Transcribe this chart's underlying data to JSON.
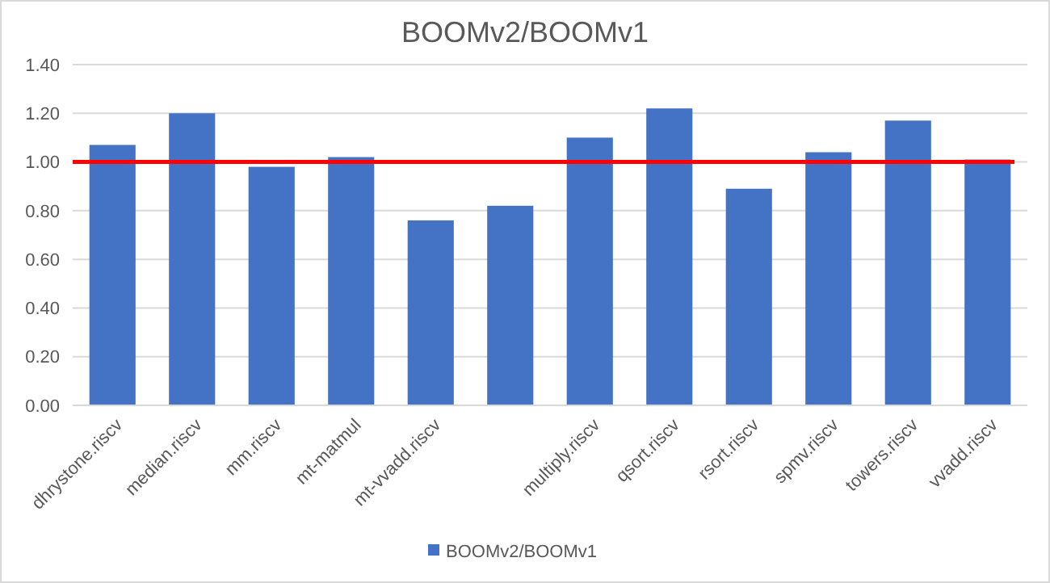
{
  "chart_data": {
    "type": "bar",
    "title": "BOOMv2/BOOMv1",
    "categories": [
      "dhrystone.riscv",
      "median.riscv",
      "mm.riscv",
      "mt-matmul",
      "mt-vvadd.riscv",
      null,
      "multiply.riscv",
      "qsort.riscv",
      "rsort.riscv",
      "spmv.riscv",
      "towers.riscv",
      "vvadd.riscv"
    ],
    "series": [
      {
        "name": "BOOMv2/BOOMv1",
        "color": "#4472c4",
        "values": [
          1.07,
          1.2,
          0.98,
          1.02,
          0.76,
          0.82,
          1.1,
          1.22,
          0.89,
          1.04,
          1.17,
          1.01
        ]
      }
    ],
    "ylim": [
      0,
      1.4
    ],
    "yticks": [
      {
        "value": 0,
        "label": "0.00"
      },
      {
        "value": 0.2,
        "label": "0.20"
      },
      {
        "value": 0.4,
        "label": "0.40"
      },
      {
        "value": 0.6,
        "label": "0.60"
      },
      {
        "value": 0.8,
        "label": "0.80"
      },
      {
        "value": 1,
        "label": "1.00"
      },
      {
        "value": 1.2,
        "label": "1.20"
      },
      {
        "value": 1.4,
        "label": "1.40"
      }
    ],
    "ref_lines": [
      {
        "axis": "y",
        "value": 1,
        "color": "#ff0000"
      }
    ],
    "grid": "y",
    "legend": "bottom"
  }
}
